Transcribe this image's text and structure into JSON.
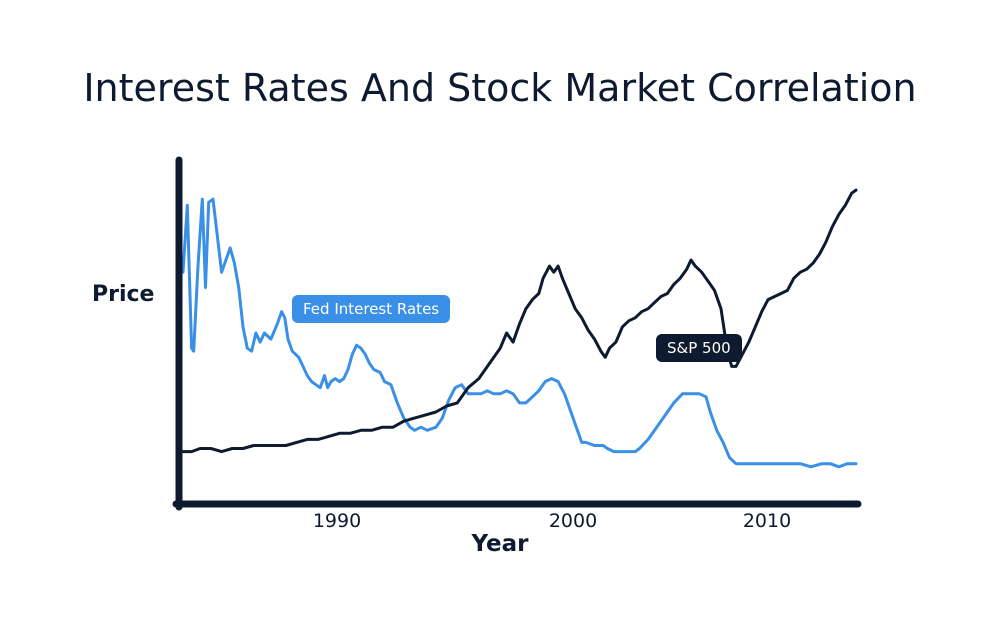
{
  "chart_data": {
    "type": "line",
    "title": "Interest Rates And Stock Market Correlation",
    "xlabel": "Year",
    "ylabel": "Price",
    "xlim": [
      1983.2,
      2014.6
    ],
    "ylim": [
      0,
      100
    ],
    "xticks": [
      {
        "value": 1990,
        "label": "1990"
      },
      {
        "value": 2000,
        "label": "2000"
      },
      {
        "value": 2010,
        "label": "2010"
      }
    ],
    "colors": {
      "fed": "#3a8fe6",
      "sp500": "#0d1a2f",
      "axis": "#0d1a2f"
    },
    "series": [
      {
        "name": "Fed Interest Rates",
        "legend_label": "Fed Interest Rates",
        "color": "#3a8fe6",
        "points": [
          [
            1983.2,
            70
          ],
          [
            1983.4,
            92
          ],
          [
            1983.6,
            45
          ],
          [
            1983.7,
            44
          ],
          [
            1983.9,
            72
          ],
          [
            1984.1,
            94
          ],
          [
            1984.25,
            65
          ],
          [
            1984.4,
            93
          ],
          [
            1984.6,
            94
          ],
          [
            1984.8,
            82
          ],
          [
            1985.0,
            70
          ],
          [
            1985.2,
            74
          ],
          [
            1985.4,
            78
          ],
          [
            1985.6,
            73
          ],
          [
            1985.8,
            65
          ],
          [
            1986.0,
            52
          ],
          [
            1986.2,
            45
          ],
          [
            1986.4,
            44
          ],
          [
            1986.6,
            50
          ],
          [
            1986.8,
            47
          ],
          [
            1987.0,
            50
          ],
          [
            1987.3,
            48
          ],
          [
            1987.6,
            53
          ],
          [
            1987.8,
            57
          ],
          [
            1987.95,
            55
          ],
          [
            1988.1,
            48
          ],
          [
            1988.3,
            44
          ],
          [
            1988.6,
            42
          ],
          [
            1988.8,
            39
          ],
          [
            1989.0,
            36
          ],
          [
            1989.2,
            34
          ],
          [
            1989.4,
            33
          ],
          [
            1989.6,
            32
          ],
          [
            1989.8,
            36
          ],
          [
            1989.95,
            32
          ],
          [
            1990.1,
            34
          ],
          [
            1990.3,
            35
          ],
          [
            1990.5,
            34
          ],
          [
            1990.7,
            35
          ],
          [
            1990.9,
            38
          ],
          [
            1991.1,
            43
          ],
          [
            1991.3,
            46
          ],
          [
            1991.5,
            45
          ],
          [
            1991.7,
            43
          ],
          [
            1991.9,
            40
          ],
          [
            1992.1,
            38
          ],
          [
            1992.4,
            37
          ],
          [
            1992.6,
            34
          ],
          [
            1992.9,
            33
          ],
          [
            1993.2,
            27
          ],
          [
            1993.5,
            22
          ],
          [
            1993.8,
            19
          ],
          [
            1994.0,
            18
          ],
          [
            1994.3,
            19
          ],
          [
            1994.6,
            18
          ],
          [
            1995.0,
            19
          ],
          [
            1995.3,
            22
          ],
          [
            1995.6,
            28
          ],
          [
            1995.9,
            32
          ],
          [
            1996.2,
            33
          ],
          [
            1996.5,
            30
          ],
          [
            1996.8,
            30
          ],
          [
            1997.1,
            30
          ],
          [
            1997.4,
            31
          ],
          [
            1997.7,
            30
          ],
          [
            1998.0,
            30
          ],
          [
            1998.3,
            31
          ],
          [
            1998.6,
            30
          ],
          [
            1998.9,
            27
          ],
          [
            1999.2,
            27
          ],
          [
            1999.5,
            29
          ],
          [
            1999.8,
            31
          ],
          [
            2000.1,
            34
          ],
          [
            2000.4,
            35
          ],
          [
            2000.7,
            34
          ],
          [
            2001.0,
            30
          ],
          [
            2001.3,
            24
          ],
          [
            2001.6,
            18
          ],
          [
            2001.8,
            14
          ],
          [
            2002.0,
            14
          ],
          [
            2002.4,
            13
          ],
          [
            2002.8,
            13
          ],
          [
            2003.0,
            12
          ],
          [
            2003.3,
            11
          ],
          [
            2003.7,
            11
          ],
          [
            2004.0,
            11
          ],
          [
            2004.3,
            11
          ],
          [
            2004.5,
            12
          ],
          [
            2004.9,
            15
          ],
          [
            2005.3,
            19
          ],
          [
            2005.7,
            23
          ],
          [
            2006.1,
            27
          ],
          [
            2006.5,
            30
          ],
          [
            2006.9,
            30
          ],
          [
            2007.3,
            30
          ],
          [
            2007.6,
            29
          ],
          [
            2007.8,
            24
          ],
          [
            2008.1,
            18
          ],
          [
            2008.4,
            14
          ],
          [
            2008.7,
            9
          ],
          [
            2009.0,
            7
          ],
          [
            2009.5,
            7
          ],
          [
            2010.0,
            7
          ],
          [
            2010.5,
            7
          ],
          [
            2011.0,
            7
          ],
          [
            2011.5,
            7
          ],
          [
            2012.0,
            7
          ],
          [
            2012.5,
            6
          ],
          [
            2013.0,
            7
          ],
          [
            2013.4,
            7
          ],
          [
            2013.8,
            6
          ],
          [
            2014.2,
            7
          ],
          [
            2014.6,
            7
          ]
        ]
      },
      {
        "name": "S&P 500",
        "legend_label": "S&P 500",
        "color": "#0d1a2f",
        "points": [
          [
            1983.2,
            11
          ],
          [
            1983.6,
            11
          ],
          [
            1984.0,
            12
          ],
          [
            1984.5,
            12
          ],
          [
            1985.0,
            11
          ],
          [
            1985.5,
            12
          ],
          [
            1986.0,
            12
          ],
          [
            1986.5,
            13
          ],
          [
            1987.0,
            13
          ],
          [
            1987.5,
            13
          ],
          [
            1988.0,
            13
          ],
          [
            1988.5,
            14
          ],
          [
            1989.0,
            15
          ],
          [
            1989.5,
            15
          ],
          [
            1990.0,
            16
          ],
          [
            1990.5,
            17
          ],
          [
            1991.0,
            17
          ],
          [
            1991.5,
            18
          ],
          [
            1992.0,
            18
          ],
          [
            1992.5,
            19
          ],
          [
            1993.0,
            19
          ],
          [
            1993.5,
            21
          ],
          [
            1994.0,
            22
          ],
          [
            1994.5,
            23
          ],
          [
            1995.0,
            24
          ],
          [
            1995.5,
            26
          ],
          [
            1996.0,
            27
          ],
          [
            1996.5,
            32
          ],
          [
            1997.0,
            35
          ],
          [
            1997.5,
            40
          ],
          [
            1998.0,
            45
          ],
          [
            1998.3,
            50
          ],
          [
            1998.6,
            47
          ],
          [
            1998.9,
            53
          ],
          [
            1999.2,
            58
          ],
          [
            1999.5,
            61
          ],
          [
            1999.8,
            63
          ],
          [
            2000.0,
            68
          ],
          [
            2000.3,
            72
          ],
          [
            2000.5,
            70
          ],
          [
            2000.7,
            72
          ],
          [
            2000.9,
            68
          ],
          [
            2001.2,
            63
          ],
          [
            2001.5,
            58
          ],
          [
            2001.8,
            55
          ],
          [
            2002.1,
            51
          ],
          [
            2002.4,
            48
          ],
          [
            2002.7,
            44
          ],
          [
            2002.9,
            42
          ],
          [
            2003.1,
            45
          ],
          [
            2003.4,
            47
          ],
          [
            2003.7,
            52
          ],
          [
            2004.0,
            54
          ],
          [
            2004.3,
            55
          ],
          [
            2004.6,
            57
          ],
          [
            2004.9,
            58
          ],
          [
            2005.2,
            60
          ],
          [
            2005.5,
            62
          ],
          [
            2005.8,
            63
          ],
          [
            2006.1,
            66
          ],
          [
            2006.4,
            68
          ],
          [
            2006.7,
            71
          ],
          [
            2006.9,
            74
          ],
          [
            2007.1,
            72
          ],
          [
            2007.4,
            70
          ],
          [
            2007.7,
            67
          ],
          [
            2008.0,
            64
          ],
          [
            2008.3,
            58
          ],
          [
            2008.6,
            44
          ],
          [
            2008.8,
            39
          ],
          [
            2009.0,
            39
          ],
          [
            2009.3,
            43
          ],
          [
            2009.6,
            47
          ],
          [
            2009.9,
            52
          ],
          [
            2010.2,
            57
          ],
          [
            2010.5,
            61
          ],
          [
            2010.8,
            62
          ],
          [
            2011.1,
            63
          ],
          [
            2011.4,
            64
          ],
          [
            2011.7,
            68
          ],
          [
            2012.0,
            70
          ],
          [
            2012.3,
            71
          ],
          [
            2012.6,
            73
          ],
          [
            2012.9,
            76
          ],
          [
            2013.2,
            80
          ],
          [
            2013.5,
            85
          ],
          [
            2013.8,
            89
          ],
          [
            2014.1,
            92
          ],
          [
            2014.4,
            96
          ],
          [
            2014.6,
            97
          ]
        ]
      }
    ]
  }
}
